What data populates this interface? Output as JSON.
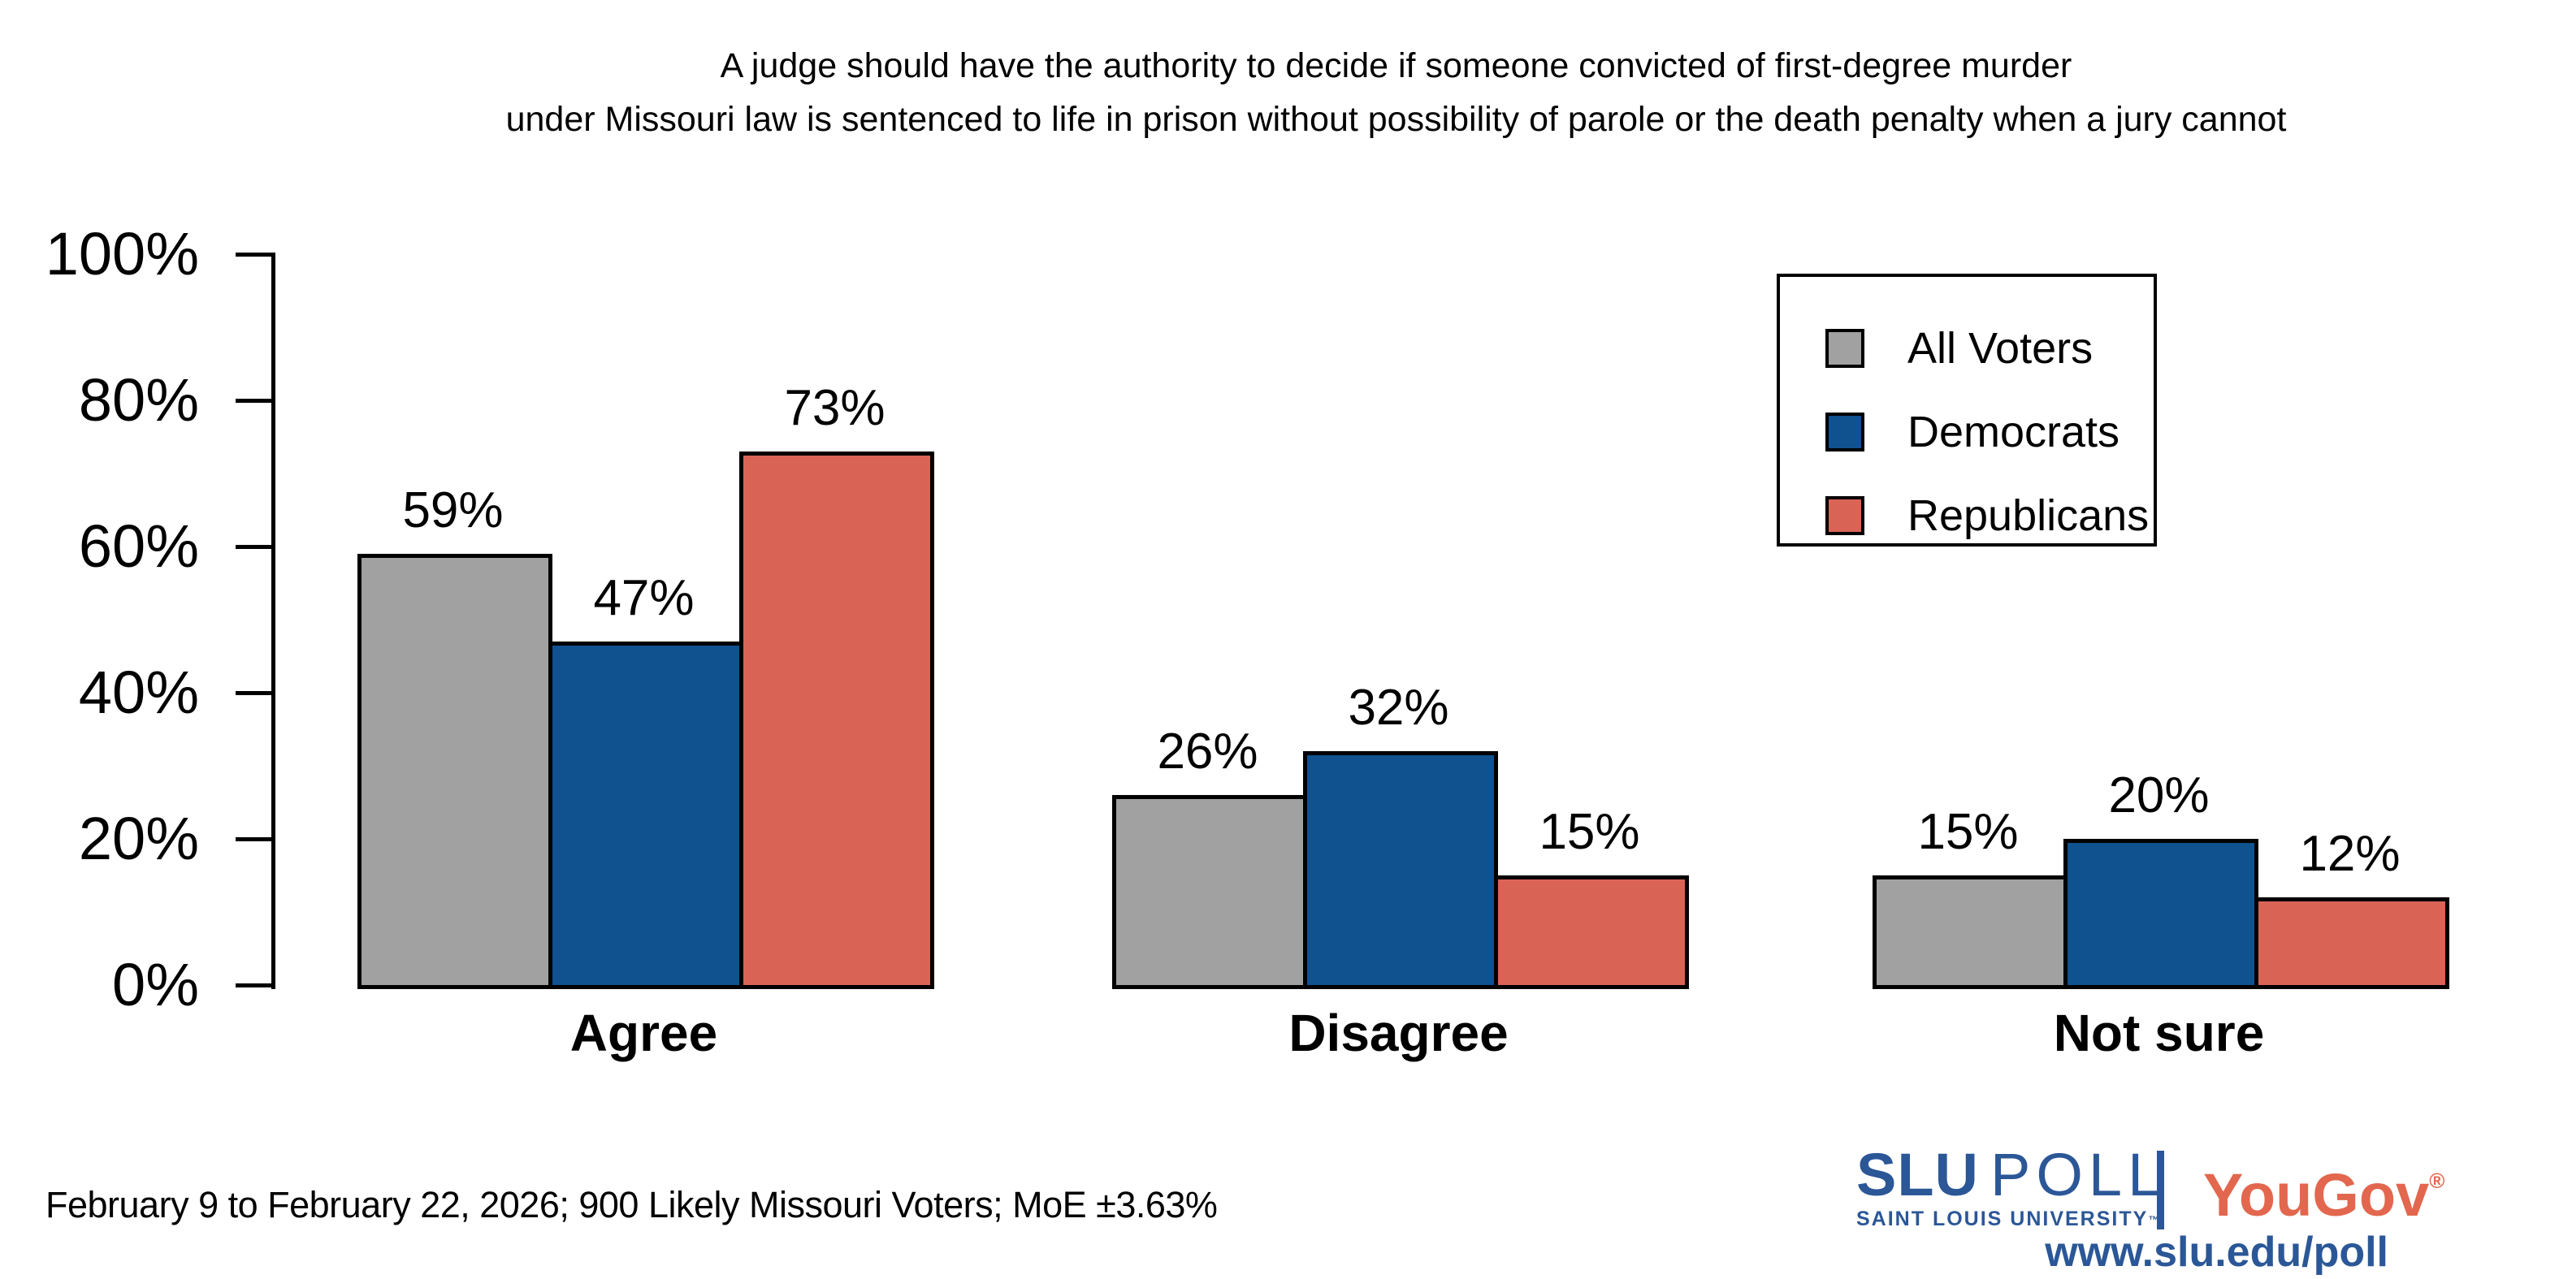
{
  "title": {
    "line1": "A judge should have the authority to decide if someone convicted of first-degree murder",
    "line2": "under Missouri law is sentenced to life in prison without possibility of parole or the death penalty when a jury cannot"
  },
  "chart_data": {
    "type": "bar",
    "categories": [
      "Agree",
      "Disagree",
      "Not sure"
    ],
    "series": [
      {
        "name": "All Voters",
        "color": "#a1a1a1",
        "values": [
          59,
          26,
          15
        ]
      },
      {
        "name": "Democrats",
        "color": "#10518f",
        "values": [
          47,
          32,
          20
        ]
      },
      {
        "name": "Republicans",
        "color": "#d96456",
        "values": [
          73,
          15,
          12
        ]
      }
    ],
    "value_labels": [
      [
        "59%",
        "26%",
        "15%"
      ],
      [
        "47%",
        "32%",
        "20%"
      ],
      [
        "73%",
        "15%",
        "12%"
      ]
    ],
    "y_axis": {
      "ticks": [
        "0%",
        "20%",
        "40%",
        "60%",
        "80%",
        "100%"
      ],
      "range": [
        0,
        100
      ]
    },
    "legend": {
      "position": "top-right",
      "entries": [
        "All Voters",
        "Democrats",
        "Republicans"
      ]
    },
    "grid": false,
    "bar_outline_color": "#000000"
  },
  "footer": {
    "note": "February 9 to February 22, 2026; 900 Likely Missouri Voters; MoE ±3.63%"
  },
  "branding": {
    "slu": "SLU",
    "poll": "POLL",
    "university": "SAINT LOUIS UNIVERSITY",
    "trademark": "™",
    "yougov": "YouGov",
    "registered": "®",
    "url": "www.slu.edu/poll",
    "slu_blue": "#2b5797",
    "yougov_red": "#e2674e"
  }
}
